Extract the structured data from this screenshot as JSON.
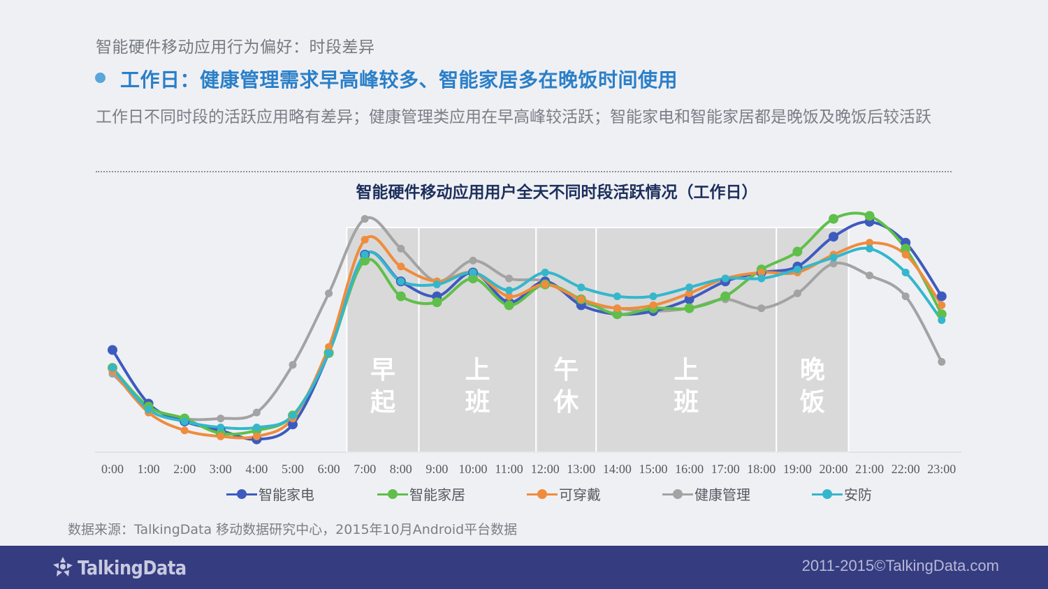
{
  "header": {
    "section": "智能硬件移动应用行为偏好：时段差异",
    "headline": "工作日：健康管理需求早高峰较多、智能家居多在晚饭时间使用",
    "description": "工作日不同时段的活跃应用略有差异；健康管理类应用在早高峰较活跃；智能家电和智能家居都是晚饭及晚饭后较活跃"
  },
  "chart_data": {
    "type": "line",
    "title": "智能硬件移动应用用户全天不同时段活跃情况（工作日）",
    "x": [
      "0:00",
      "1:00",
      "2:00",
      "3:00",
      "4:00",
      "5:00",
      "6:00",
      "7:00",
      "8:00",
      "9:00",
      "10:00",
      "11:00",
      "12:00",
      "13:00",
      "14:00",
      "15:00",
      "16:00",
      "17:00",
      "18:00",
      "19:00",
      "20:00",
      "21:00",
      "22:00",
      "23:00"
    ],
    "ylim": [
      0,
      100
    ],
    "grid": false,
    "legend_position": "bottom",
    "bands": [
      {
        "label": "早起",
        "from": "6:30",
        "to": "8:30"
      },
      {
        "label": "上班",
        "from": "8:30",
        "to": "11:45"
      },
      {
        "label": "午休",
        "from": "11:45",
        "to": "13:25"
      },
      {
        "label": "上班",
        "from": "13:25",
        "to": "18:25"
      },
      {
        "label": "晚饭",
        "from": "18:25",
        "to": "20:25"
      }
    ],
    "series": [
      {
        "name": "智能家电",
        "color": "#3d5bbf",
        "values": [
          39,
          21,
          15,
          12,
          9,
          14,
          38,
          71,
          62,
          57,
          65,
          55,
          62,
          54,
          51,
          52,
          56,
          62,
          65,
          67,
          77,
          82,
          75,
          57
        ]
      },
      {
        "name": "智能家居",
        "color": "#5fbf4a",
        "values": [
          33,
          20,
          16,
          11,
          12,
          17,
          38,
          69,
          57,
          55,
          63,
          54,
          61,
          56,
          51,
          53,
          53,
          57,
          66,
          72,
          83,
          84,
          73,
          51
        ]
      },
      {
        "name": "可穿戴",
        "color": "#ef8c3d",
        "values": [
          32,
          18,
          12,
          10,
          10,
          16,
          40,
          76,
          67,
          62,
          65,
          57,
          61,
          56,
          53,
          54,
          58,
          63,
          65,
          65,
          71,
          75,
          71,
          54
        ]
      },
      {
        "name": "健康管理",
        "color": "#a3a3a3",
        "values": [
          31,
          20,
          16,
          16,
          18,
          34,
          58,
          83,
          73,
          62,
          69,
          63,
          62,
          55,
          53,
          52,
          53,
          56,
          53,
          58,
          68,
          64,
          57,
          35
        ]
      },
      {
        "name": "安防",
        "color": "#34b7cc",
        "values": [
          33,
          19,
          15,
          13,
          13,
          17,
          38,
          71,
          62,
          61,
          65,
          59,
          65,
          60,
          57,
          57,
          60,
          63,
          63,
          66,
          70,
          73,
          65,
          49
        ]
      }
    ]
  },
  "source": "数据来源：TalkingData 移动数据研究中心，2015年10月Android平台数据",
  "footer": {
    "logo_text": "TalkingData",
    "copyright": "2011-2015©TalkingData.com",
    "background": "#363c80"
  },
  "icons": {
    "logo": "talkingdata-logo-icon"
  }
}
